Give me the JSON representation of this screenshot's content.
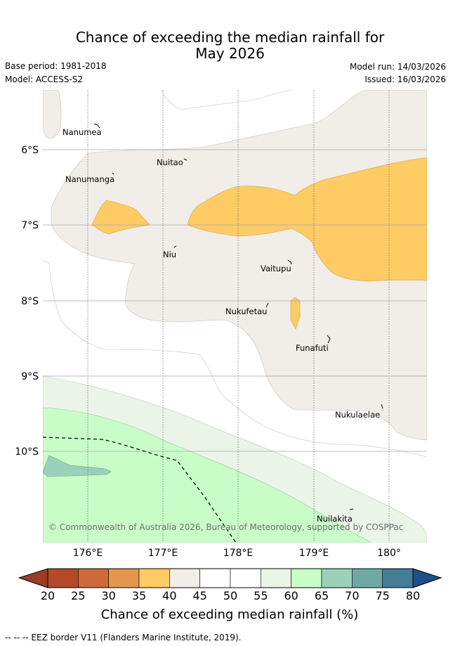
{
  "title": {
    "line1": "Chance of exceeding the median rainfall for",
    "line2": "May 2026"
  },
  "meta": {
    "base_period": "Base period: 1981-2018",
    "model": "Model: ACCESS-S2",
    "model_run": "Model run: 14/03/2026",
    "issued": "Issued: 16/03/2026"
  },
  "map": {
    "lat_labels": [
      "6°S",
      "7°S",
      "8°S",
      "9°S",
      "10°S"
    ],
    "lon_labels": [
      "176°E",
      "177°E",
      "178°E",
      "179°E",
      "180°"
    ],
    "places": [
      "Nanumea",
      "Nuitao",
      "Nanumanga",
      "Niu",
      "Vaitupu",
      "Nukufetau",
      "Funafuti",
      "Nukulaelae",
      "Nuilakita"
    ],
    "copyright": "© Commonwealth of Australia 2026, Bureau of Meteorology, supported by COSPPac"
  },
  "colorbar": {
    "ticks": [
      "20",
      "25",
      "30",
      "35",
      "40",
      "45",
      "50",
      "55",
      "60",
      "65",
      "70",
      "75",
      "80"
    ],
    "colors": [
      "#b5492a",
      "#d0683a",
      "#e3974a",
      "#fecb64",
      "#f1ede8",
      "#ffffff",
      "#ffffff",
      "#eaf5e8",
      "#c8fdc8",
      "#9bd1bb",
      "#70a8a8",
      "#457d99"
    ],
    "under_color": "#9c3d26",
    "over_color": "#1d4f88",
    "label": "Chance of exceeding median rainfall (%)"
  },
  "footer": {
    "eez_note": "--  --  -- EEZ border V11 (Flanders Marine Institute, 2019)."
  }
}
